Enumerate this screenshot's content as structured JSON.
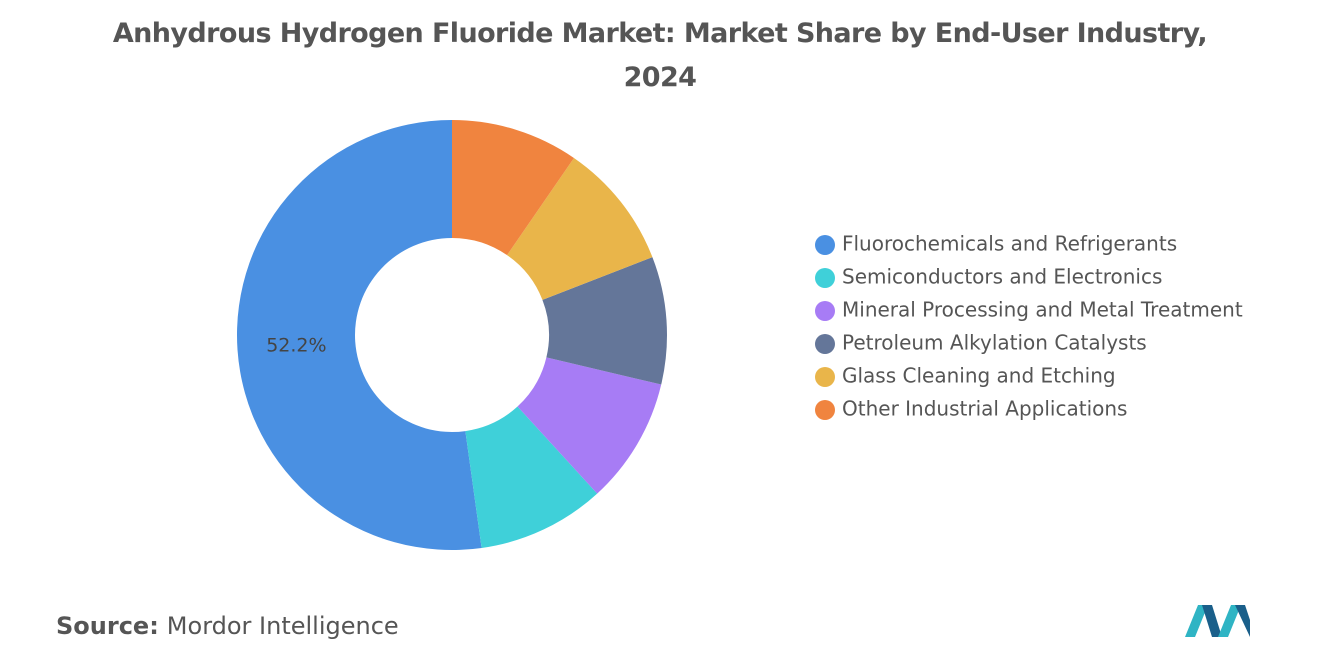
{
  "chart_data": {
    "type": "donut",
    "title": "Anhydrous Hydrogen Fluoride Market: Market Share by End-User Industry, 2024",
    "categories": [
      "Fluorochemicals and Refrigerants",
      "Semiconductors and Electronics",
      "Mineral Processing and Metal Treatment",
      "Petroleum Alkylation Catalysts",
      "Glass Cleaning and Etching",
      "Other Industrial Applications"
    ],
    "values": [
      52.2,
      9.6,
      9.5,
      9.6,
      9.5,
      9.6
    ],
    "value_labels": [
      "52.2%",
      null,
      null,
      null,
      null,
      null
    ],
    "colors": [
      "#4a90e2",
      "#3fd0d9",
      "#a77cf5",
      "#647699",
      "#e9b54a",
      "#f0843f"
    ],
    "legend": "right"
  },
  "source": {
    "label": "Source:",
    "text": "Mordor Intelligence"
  }
}
